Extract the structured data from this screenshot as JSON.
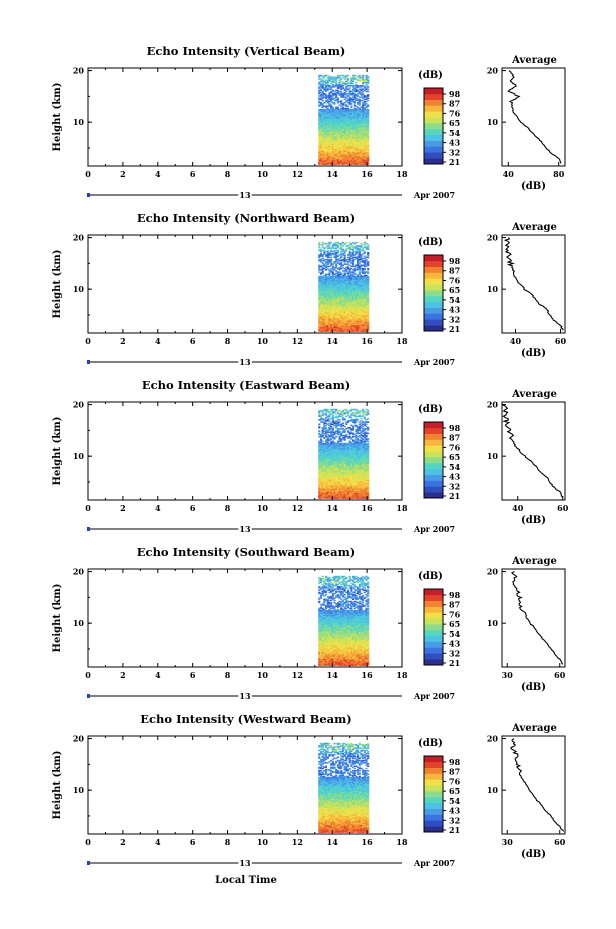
{
  "colors": {
    "colormap": [
      "#2b2e8c",
      "#2f4fc0",
      "#3b73e0",
      "#4a9be6",
      "#4cc2e4",
      "#56d6c0",
      "#8ddc8a",
      "#c9e35a",
      "#f2e04a",
      "#f6b73c",
      "#f18232",
      "#e2432a",
      "#c21f2a"
    ],
    "profile_line": "#000000"
  },
  "chart_data": [
    {
      "type": "heatmap",
      "title": "Echo Intensity (Vertical Beam)",
      "xlabel": "",
      "ylabel": "Height (km)",
      "xlim": [
        0,
        18
      ],
      "ylim": [
        1.5,
        20.5
      ],
      "xticks": [
        "0",
        "2",
        "4",
        "6",
        "8",
        "10",
        "12",
        "14",
        "16",
        "18"
      ],
      "yticks": [
        "10",
        "20"
      ],
      "date_label": "13",
      "month_label": "Apr 2007",
      "data_time_range": [
        13.2,
        16.1
      ],
      "colorbar": {
        "unit": "(dB)",
        "ticks": [
          "98",
          "87",
          "76",
          "65",
          "54",
          "43",
          "32",
          "21"
        ]
      },
      "profile": {
        "title": "Average",
        "xlabel": "(dB)",
        "xlim": [
          35,
          85
        ],
        "xticks": [
          "40",
          "80"
        ],
        "yticks": [
          "10",
          "20"
        ],
        "points": [
          [
            82,
            2
          ],
          [
            80,
            3
          ],
          [
            74,
            4
          ],
          [
            70,
            5
          ],
          [
            67,
            6
          ],
          [
            63,
            7
          ],
          [
            59,
            8
          ],
          [
            55,
            9
          ],
          [
            50,
            10
          ],
          [
            47,
            11
          ],
          [
            44,
            12
          ],
          [
            43,
            13
          ],
          [
            42,
            14
          ],
          [
            48,
            15
          ],
          [
            40,
            16
          ],
          [
            47,
            17
          ],
          [
            42,
            18
          ],
          [
            44,
            19
          ],
          [
            40,
            20
          ]
        ]
      }
    },
    {
      "type": "heatmap",
      "title": "Echo Intensity (Northward Beam)",
      "xlabel": "",
      "ylabel": "Height (km)",
      "xlim": [
        0,
        18
      ],
      "ylim": [
        1.5,
        20.5
      ],
      "xticks": [
        "0",
        "2",
        "4",
        "6",
        "8",
        "10",
        "12",
        "14",
        "16",
        "18"
      ],
      "yticks": [
        "10",
        "20"
      ],
      "date_label": "13",
      "month_label": "Apr 2007",
      "data_time_range": [
        13.2,
        16.1
      ],
      "colorbar": {
        "unit": "(dB)",
        "ticks": [
          "98",
          "87",
          "76",
          "65",
          "54",
          "43",
          "32",
          "21"
        ]
      },
      "profile": {
        "title": "Average",
        "xlabel": "(dB)",
        "xlim": [
          34,
          62
        ],
        "xticks": [
          "40",
          "60"
        ],
        "yticks": [
          "10",
          "20"
        ],
        "points": [
          [
            61,
            2
          ],
          [
            60,
            3
          ],
          [
            57,
            4
          ],
          [
            55,
            5
          ],
          [
            54,
            6
          ],
          [
            51,
            7
          ],
          [
            49,
            8
          ],
          [
            47,
            9
          ],
          [
            44,
            10
          ],
          [
            42,
            11
          ],
          [
            40,
            12
          ],
          [
            39,
            13
          ],
          [
            38,
            14
          ],
          [
            38,
            15
          ],
          [
            37,
            16
          ],
          [
            37,
            17
          ],
          [
            36,
            18
          ],
          [
            37,
            19
          ],
          [
            36,
            20
          ]
        ]
      }
    },
    {
      "type": "heatmap",
      "title": "Echo Intensity (Eastward Beam)",
      "xlabel": "",
      "ylabel": "Height (km)",
      "xlim": [
        0,
        18
      ],
      "ylim": [
        1.5,
        20.5
      ],
      "xticks": [
        "0",
        "2",
        "4",
        "6",
        "8",
        "10",
        "12",
        "14",
        "16",
        "18"
      ],
      "yticks": [
        "10",
        "20"
      ],
      "date_label": "13",
      "month_label": "Apr 2007",
      "data_time_range": [
        13.2,
        16.1
      ],
      "colorbar": {
        "unit": "(dB)",
        "ticks": [
          "98",
          "87",
          "76",
          "65",
          "54",
          "43",
          "32",
          "21"
        ]
      },
      "profile": {
        "title": "Average",
        "xlabel": "(dB)",
        "xlim": [
          33,
          61
        ],
        "xticks": [
          "40",
          "60"
        ],
        "yticks": [
          "10",
          "20"
        ],
        "points": [
          [
            60,
            2
          ],
          [
            59,
            3
          ],
          [
            56,
            4
          ],
          [
            54,
            5
          ],
          [
            53,
            6
          ],
          [
            50,
            7
          ],
          [
            48,
            8
          ],
          [
            46,
            9
          ],
          [
            43,
            10
          ],
          [
            41,
            11
          ],
          [
            39,
            12
          ],
          [
            38,
            13
          ],
          [
            37,
            14
          ],
          [
            36,
            15
          ],
          [
            35,
            16
          ],
          [
            35,
            17
          ],
          [
            34,
            18
          ],
          [
            35,
            19
          ],
          [
            34,
            20
          ]
        ]
      }
    },
    {
      "type": "heatmap",
      "title": "Echo Intensity (Southward Beam)",
      "xlabel": "",
      "ylabel": "Height (km)",
      "xlim": [
        0,
        18
      ],
      "ylim": [
        1.5,
        20.5
      ],
      "xticks": [
        "0",
        "2",
        "4",
        "6",
        "8",
        "10",
        "12",
        "14",
        "16",
        "18"
      ],
      "yticks": [
        "10",
        "20"
      ],
      "date_label": "13",
      "month_label": "Apr 2007",
      "data_time_range": [
        13.2,
        16.1
      ],
      "colorbar": {
        "unit": "(dB)",
        "ticks": [
          "98",
          "87",
          "76",
          "65",
          "54",
          "43",
          "32",
          "21"
        ]
      },
      "profile": {
        "title": "Average",
        "xlabel": "(dB)",
        "xlim": [
          27,
          63
        ],
        "xticks": [
          "30",
          "60"
        ],
        "yticks": [
          "10",
          "20"
        ],
        "points": [
          [
            62,
            2
          ],
          [
            60,
            3
          ],
          [
            57,
            4
          ],
          [
            55,
            5
          ],
          [
            53,
            6
          ],
          [
            50,
            7
          ],
          [
            48,
            8
          ],
          [
            46,
            9
          ],
          [
            43,
            10
          ],
          [
            41,
            11
          ],
          [
            40,
            12
          ],
          [
            37,
            13
          ],
          [
            38,
            14
          ],
          [
            37,
            15
          ],
          [
            36,
            16
          ],
          [
            34,
            17
          ],
          [
            33,
            18
          ],
          [
            35,
            19
          ],
          [
            33,
            20
          ]
        ]
      }
    },
    {
      "type": "heatmap",
      "title": "Echo Intensity (Westward Beam)",
      "xlabel": "Local Time",
      "ylabel": "Height (km)",
      "xlim": [
        0,
        18
      ],
      "ylim": [
        1.5,
        20.5
      ],
      "xticks": [
        "0",
        "2",
        "4",
        "6",
        "8",
        "10",
        "12",
        "14",
        "16",
        "18"
      ],
      "yticks": [
        "10",
        "20"
      ],
      "date_label": "13",
      "month_label": "Apr 2007",
      "data_time_range": [
        13.2,
        16.1
      ],
      "colorbar": {
        "unit": "(dB)",
        "ticks": [
          "98",
          "87",
          "76",
          "65",
          "54",
          "43",
          "32",
          "21"
        ]
      },
      "profile": {
        "title": "Average",
        "xlabel": "(dB)",
        "xlim": [
          27,
          63
        ],
        "xticks": [
          "30",
          "60"
        ],
        "yticks": [
          "10",
          "20"
        ],
        "points": [
          [
            62,
            2
          ],
          [
            60,
            3
          ],
          [
            57,
            4
          ],
          [
            55,
            5
          ],
          [
            52,
            6
          ],
          [
            50,
            7
          ],
          [
            47,
            8
          ],
          [
            45,
            9
          ],
          [
            43,
            10
          ],
          [
            41,
            11
          ],
          [
            39,
            12
          ],
          [
            37,
            13
          ],
          [
            37,
            14
          ],
          [
            36,
            15
          ],
          [
            35,
            16
          ],
          [
            35,
            17
          ],
          [
            33,
            18
          ],
          [
            34,
            19
          ],
          [
            33,
            20
          ]
        ]
      }
    }
  ]
}
